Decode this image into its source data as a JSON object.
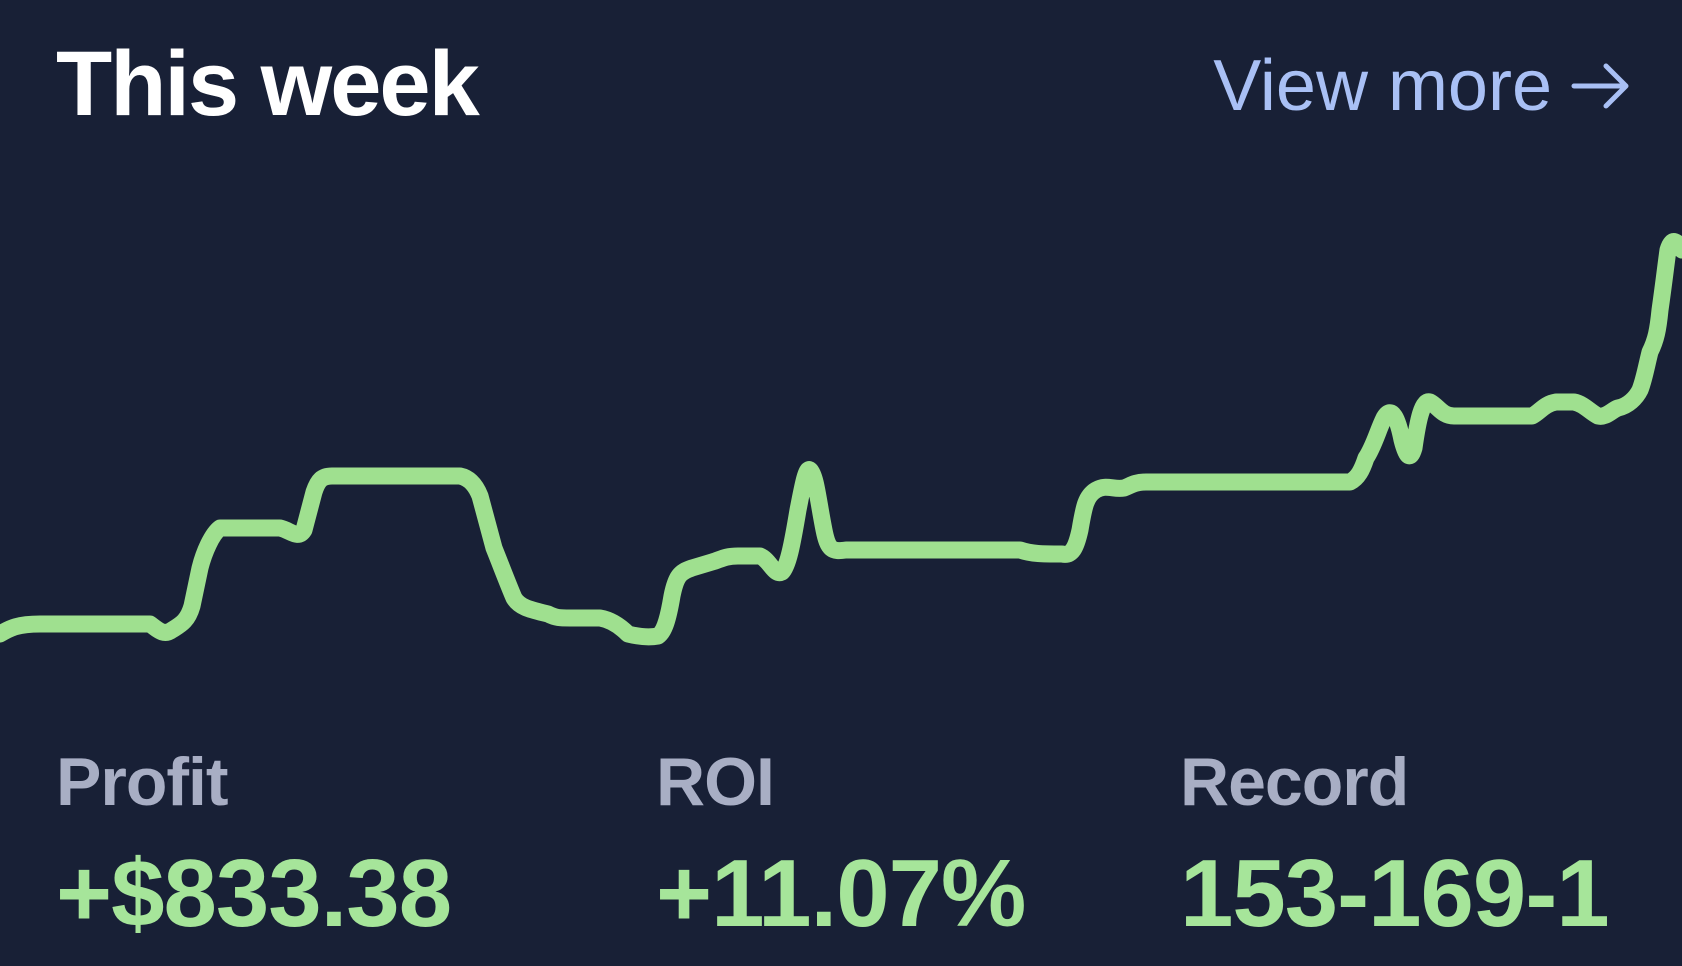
{
  "header": {
    "title": "This week",
    "view_more_label": "View more",
    "view_more_icon": "arrow-right-icon"
  },
  "colors": {
    "background": "#182036",
    "title": "#ffffff",
    "link": "#a9c0f5",
    "label": "#a8aec4",
    "positive": "#a6e59a",
    "line": "#9fe08f"
  },
  "stats": [
    {
      "label": "Profit",
      "value": "+$833.38"
    },
    {
      "label": "ROI",
      "value": "+11.07%"
    },
    {
      "label": "Record",
      "value": "153-169-1"
    }
  ]
}
